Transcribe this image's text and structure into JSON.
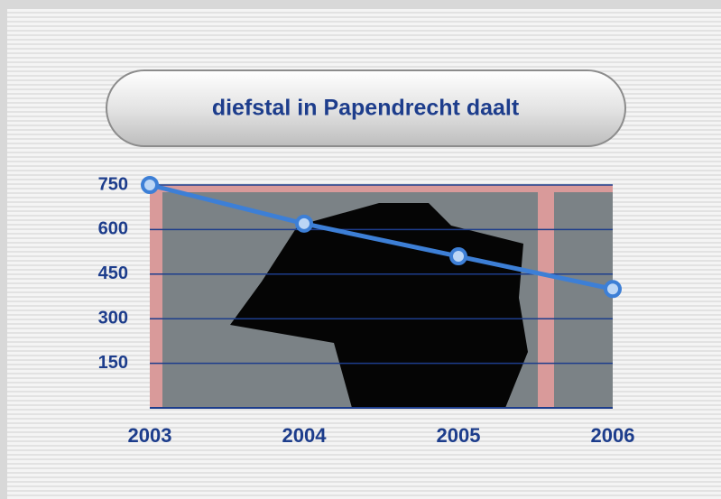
{
  "chart_data": {
    "type": "line",
    "title": "diefstal in Papendrecht daalt",
    "categories": [
      "2003",
      "2004",
      "2005",
      "2006"
    ],
    "series": [
      {
        "color": "#3d7fd6",
        "values": [
          750,
          620,
          510,
          400
        ]
      }
    ],
    "ylim": [
      0,
      750
    ],
    "yticks": [
      150,
      300,
      450,
      600,
      750
    ],
    "grid": true
  }
}
